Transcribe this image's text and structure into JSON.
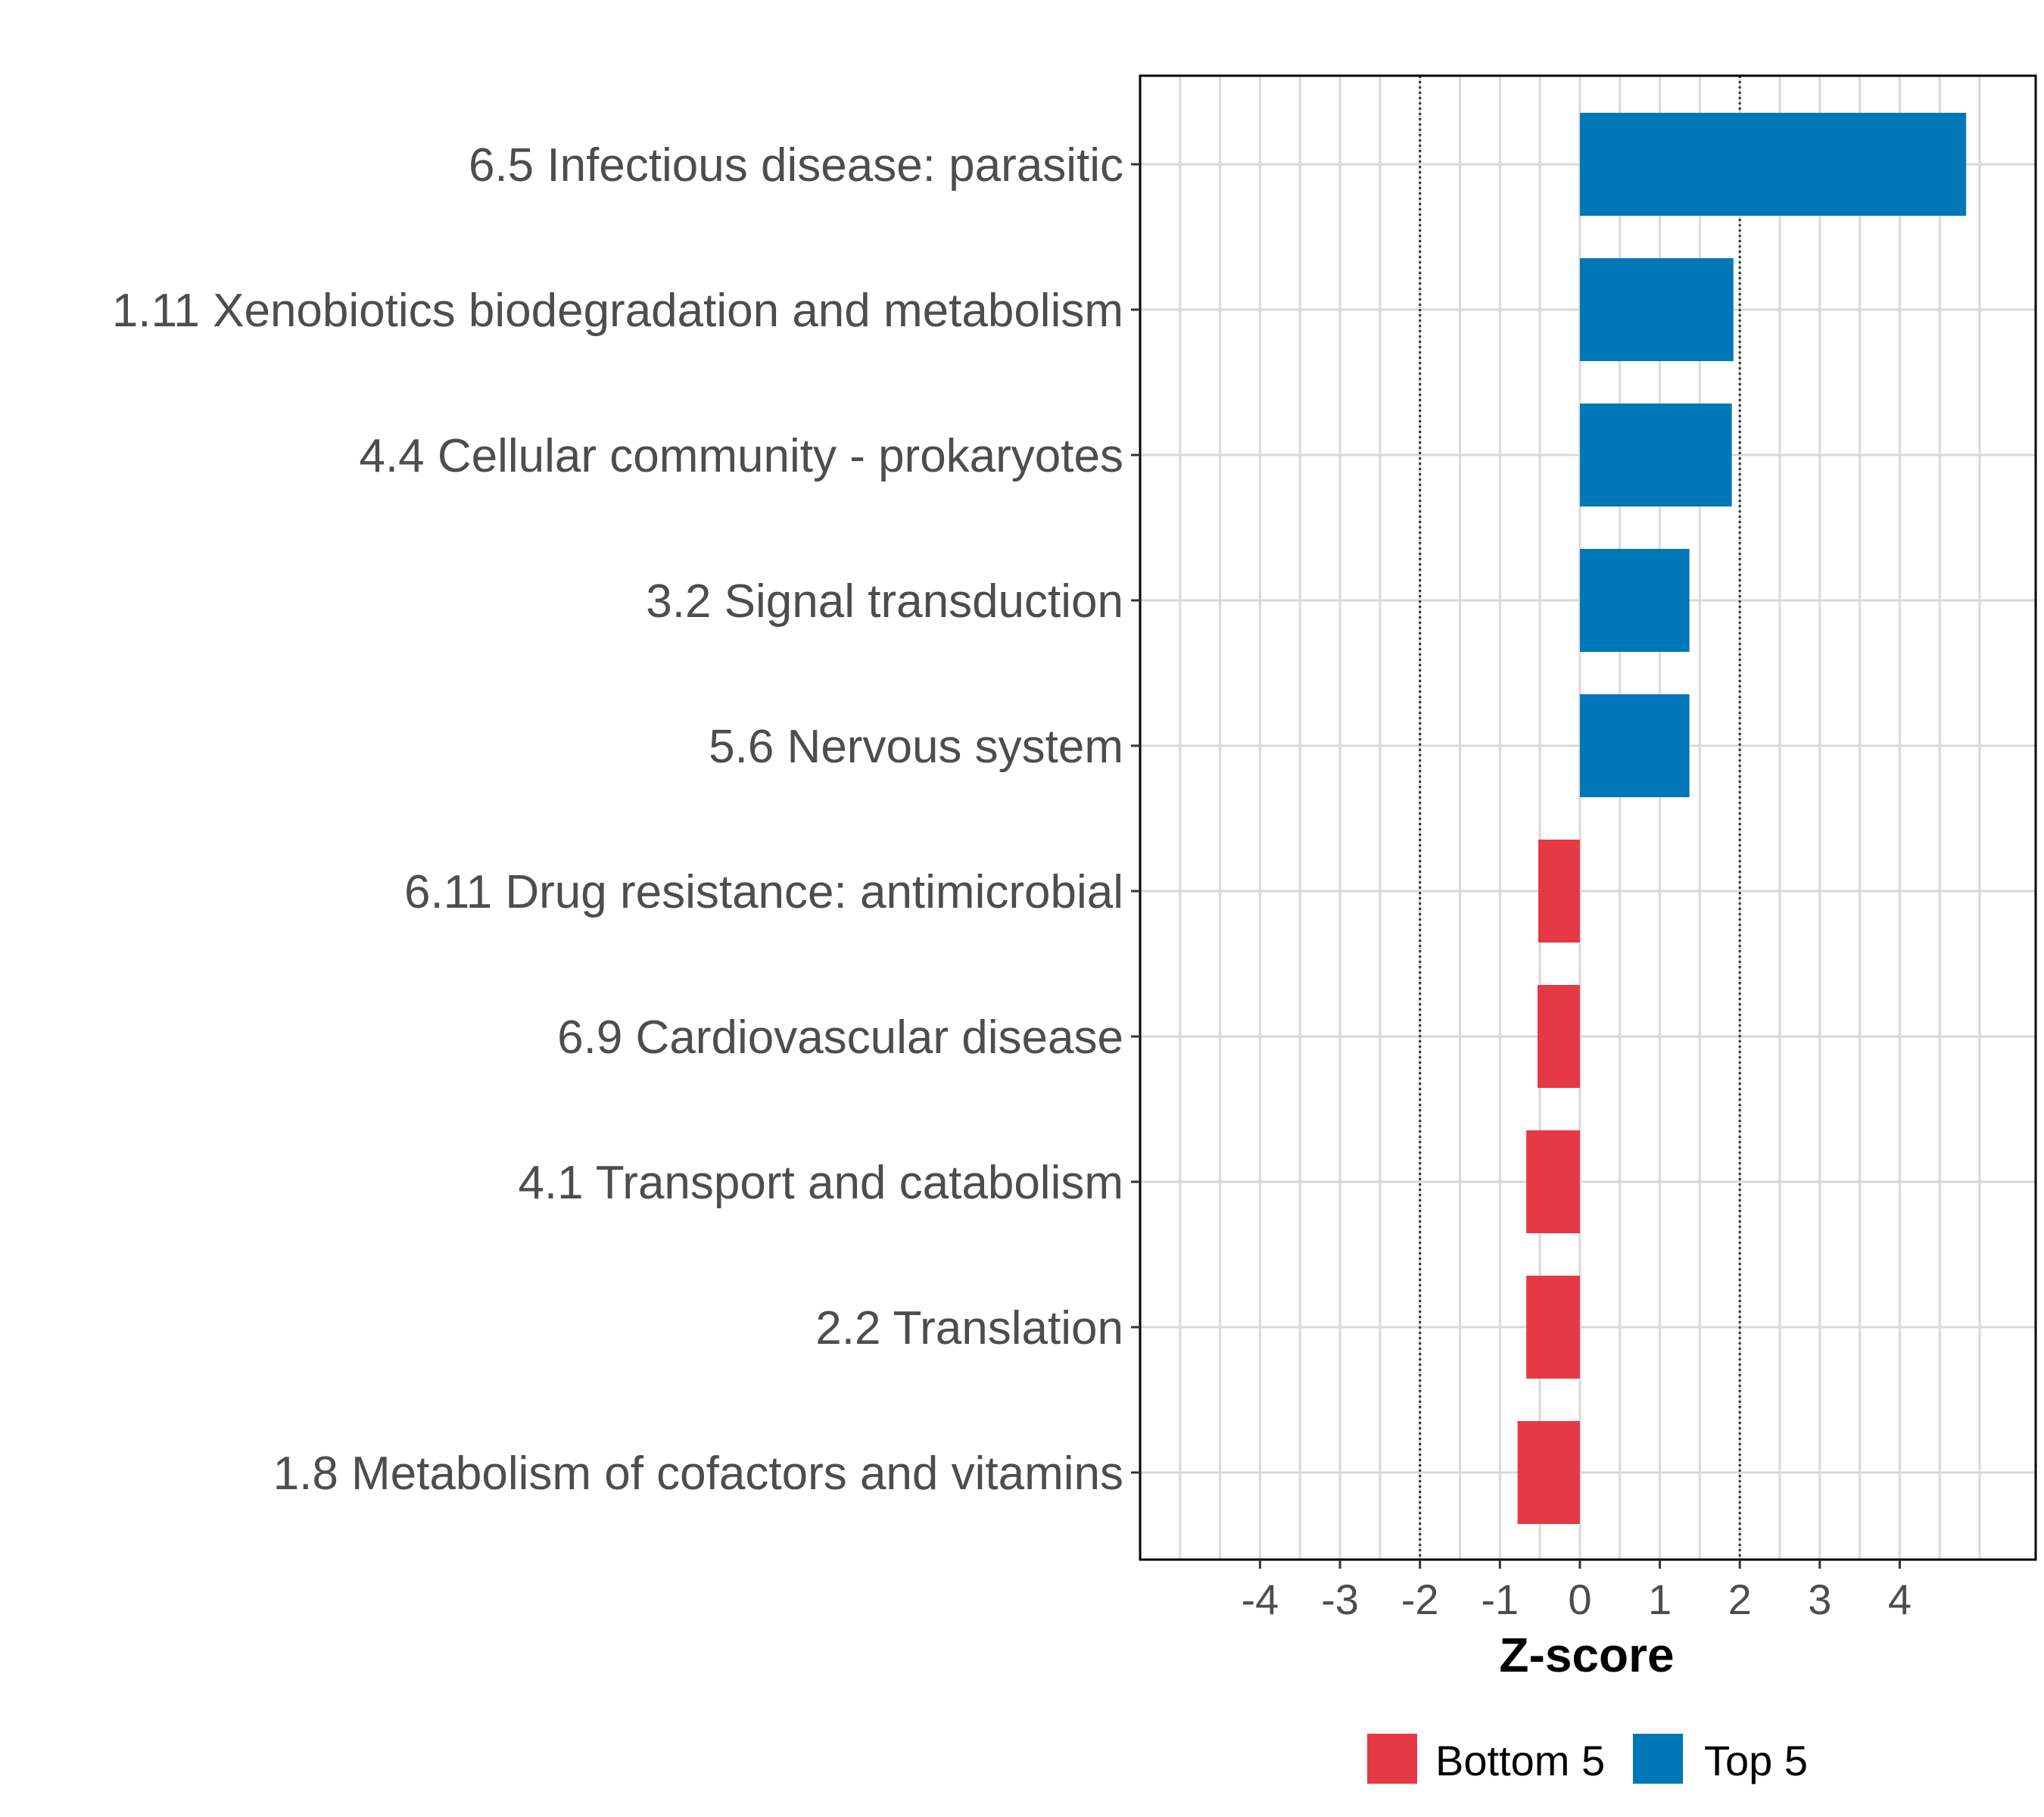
{
  "chart_data": {
    "type": "bar",
    "orientation": "horizontal",
    "title": "",
    "xlabel": "Z-score",
    "ylabel": "",
    "xlim": [
      -5.5,
      5.7
    ],
    "xticks": [
      -4,
      -3,
      -2,
      -1,
      0,
      1,
      2,
      3,
      4
    ],
    "xtick_labels": [
      "-4",
      "-3",
      "-2",
      "-1",
      "0",
      "1",
      "2",
      "3",
      "4"
    ],
    "reference_lines": [
      -2,
      2
    ],
    "grid": true,
    "legend_position": "bottom",
    "legend": [
      {
        "name": "Bottom 5",
        "color": "#E63946"
      },
      {
        "name": "Top 5",
        "color": "#0077B6"
      }
    ],
    "categories": [
      "6.5 Infectious disease: parasitic",
      "1.11 Xenobiotics biodegradation and metabolism",
      "4.4 Cellular community - prokaryotes",
      "3.2 Signal transduction",
      "5.6 Nervous system",
      "6.11 Drug resistance: antimicrobial",
      "6.9 Cardiovascular disease",
      "4.1 Transport and catabolism",
      "2.2 Translation",
      "1.8 Metabolism of cofactors and vitamins"
    ],
    "values": [
      4.83,
      1.92,
      1.9,
      1.37,
      1.37,
      -0.52,
      -0.53,
      -0.67,
      -0.67,
      -0.78
    ],
    "groups": [
      "Top 5",
      "Top 5",
      "Top 5",
      "Top 5",
      "Top 5",
      "Bottom 5",
      "Bottom 5",
      "Bottom 5",
      "Bottom 5",
      "Bottom 5"
    ]
  }
}
